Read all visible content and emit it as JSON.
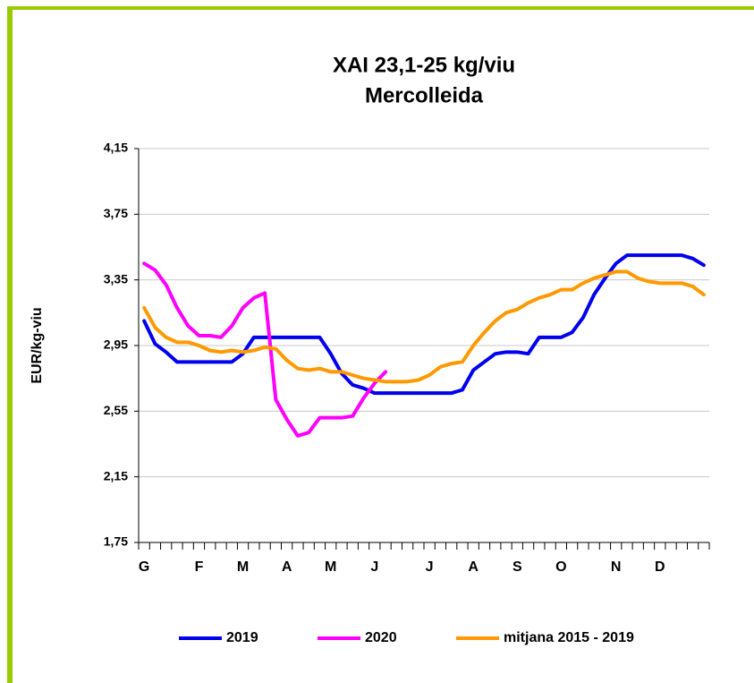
{
  "chart_data": {
    "type": "line",
    "title": "XAI   23,1-25 kg/viu",
    "subtitle": "Mercolleida",
    "ylabel": "EUR/kg-viu",
    "categories": [
      "G",
      null,
      null,
      null,
      null,
      "F",
      null,
      null,
      null,
      "M",
      null,
      null,
      null,
      "A",
      null,
      null,
      null,
      "M",
      null,
      null,
      null,
      "J",
      null,
      null,
      null,
      null,
      "J",
      null,
      null,
      null,
      "A",
      null,
      null,
      null,
      "S",
      null,
      null,
      null,
      "O",
      null,
      null,
      null,
      null,
      "N",
      null,
      null,
      null,
      "D",
      null,
      null,
      null,
      null
    ],
    "series": [
      {
        "name": "2019",
        "color": "#0000ee",
        "values": [
          3.1,
          2.96,
          2.91,
          2.85,
          2.85,
          2.85,
          2.85,
          2.85,
          2.85,
          2.9,
          3.0,
          3.0,
          3.0,
          3.0,
          3.0,
          3.0,
          3.0,
          2.9,
          2.78,
          2.71,
          2.69,
          2.66,
          2.66,
          2.66,
          2.66,
          2.66,
          2.66,
          2.66,
          2.66,
          2.68,
          2.8,
          2.85,
          2.9,
          2.91,
          2.91,
          2.9,
          3.0,
          3.0,
          3.0,
          3.03,
          3.12,
          3.26,
          3.36,
          3.45,
          3.5,
          3.5,
          3.5,
          3.5,
          3.5,
          3.5,
          3.48,
          3.44
        ]
      },
      {
        "name": "2020",
        "color": "#ff00ff",
        "values": [
          3.45,
          3.41,
          3.32,
          3.18,
          3.07,
          3.01,
          3.01,
          3.0,
          3.07,
          3.18,
          3.24,
          3.27,
          2.62,
          2.5,
          2.4,
          2.42,
          2.51,
          2.51,
          2.51,
          2.52,
          2.63,
          2.72,
          2.79,
          null,
          null,
          null,
          null,
          null,
          null,
          null,
          null,
          null,
          null,
          null,
          null,
          null,
          null,
          null,
          null,
          null,
          null,
          null,
          null,
          null,
          null,
          null,
          null,
          null,
          null,
          null,
          null,
          null
        ]
      },
      {
        "name": "mitjana 2015 - 2019",
        "color": "#ff9900",
        "values": [
          3.18,
          3.06,
          3.0,
          2.97,
          2.97,
          2.95,
          2.92,
          2.91,
          2.92,
          2.91,
          2.92,
          2.94,
          2.93,
          2.86,
          2.81,
          2.8,
          2.81,
          2.79,
          2.79,
          2.77,
          2.75,
          2.74,
          2.73,
          2.73,
          2.73,
          2.74,
          2.77,
          2.82,
          2.84,
          2.85,
          2.95,
          3.03,
          3.1,
          3.15,
          3.17,
          3.21,
          3.24,
          3.26,
          3.29,
          3.29,
          3.33,
          3.36,
          3.38,
          3.4,
          3.4,
          3.36,
          3.34,
          3.33,
          3.33,
          3.33,
          3.31,
          3.26
        ]
      }
    ],
    "ylim": [
      1.75,
      4.15
    ],
    "yticks": [
      {
        "value": 1.75,
        "label": "1,75"
      },
      {
        "value": 2.15,
        "label": "2,15"
      },
      {
        "value": 2.55,
        "label": "2,55"
      },
      {
        "value": 2.95,
        "label": "2,95"
      },
      {
        "value": 3.35,
        "label": "3,35"
      },
      {
        "value": 3.75,
        "label": "3,75"
      },
      {
        "value": 4.15,
        "label": "4,15"
      }
    ],
    "grid": true,
    "legend": "bottom"
  }
}
